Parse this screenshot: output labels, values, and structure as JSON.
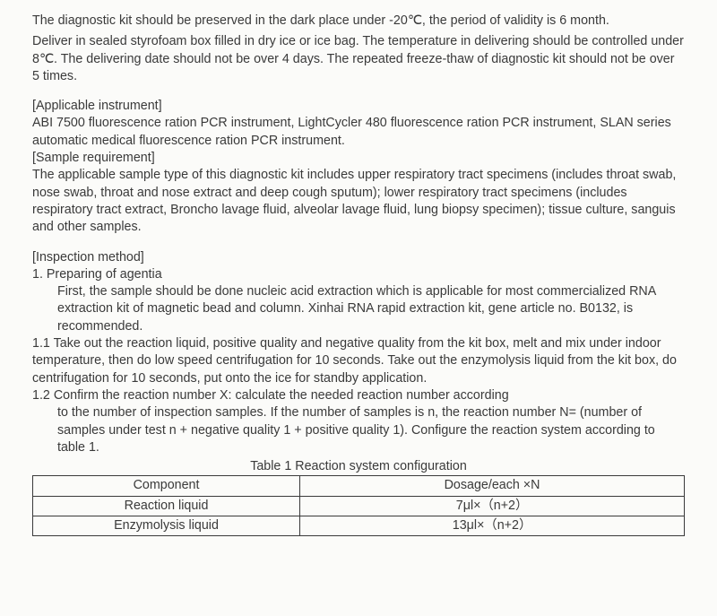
{
  "storage": {
    "p1": "The diagnostic kit should be preserved in the dark place under -20℃, the period of validity is 6 month.",
    "p2": "Deliver in sealed styrofoam box filled in dry ice or ice bag. The temperature in delivering should be controlled under 8℃. The delivering date should not be over 4 days. The repeated freeze-thaw of diagnostic kit should not be over 5 times."
  },
  "instrument": {
    "head": "[Applicable instrument]",
    "body": "ABI 7500 fluorescence ration PCR instrument, LightCycler 480 fluorescence ration PCR instrument, SLAN series automatic medical fluorescence ration PCR instrument."
  },
  "sample_req": {
    "head": " [Sample requirement]",
    "body": "The applicable sample type of this diagnostic kit includes upper respiratory tract specimens (includes throat swab, nose swab, throat and nose extract and deep cough sputum); lower respiratory tract specimens (includes respiratory tract extract, Broncho lavage fluid, alveolar lavage fluid, lung biopsy specimen); tissue culture, sanguis and other samples."
  },
  "inspection": {
    "head": "[Inspection method]",
    "item1_title": "1.   Preparing of agentia",
    "item1_body": "First, the sample should be done nucleic acid extraction which is applicable for most commercialized RNA extraction kit of magnetic bead and column. Xinhai RNA rapid extraction kit, gene article no. B0132, is recommended.",
    "item1_1": "1.1 Take out the reaction liquid, positive quality and negative quality from the kit box, melt and mix under indoor temperature, then do low speed centrifugation for 10 seconds. Take out the enzymolysis liquid from the kit box, do centrifugation for 10 seconds, put onto the ice for standby application.",
    "item1_2_a": "1.2  Confirm the reaction number X: calculate the needed reaction number according",
    "item1_2_b": "to the number of inspection samples. If the number of samples is n, the reaction number N= (number of samples under test n + negative quality 1 + positive quality 1). Configure the reaction system according to table 1."
  },
  "table1": {
    "caption": "Table 1 Reaction system configuration",
    "headers": [
      "Component",
      "Dosage/each ×N"
    ],
    "rows": [
      [
        "Reaction liquid",
        "7μl×（n+2）"
      ],
      [
        "Enzymolysis liquid",
        "13μl×（n+2）"
      ]
    ],
    "col_widths": [
      "41%",
      "59%"
    ]
  },
  "colors": {
    "text": "#3a3a3a",
    "bg": "#fbfbf9",
    "border": "#3a3a3a"
  }
}
